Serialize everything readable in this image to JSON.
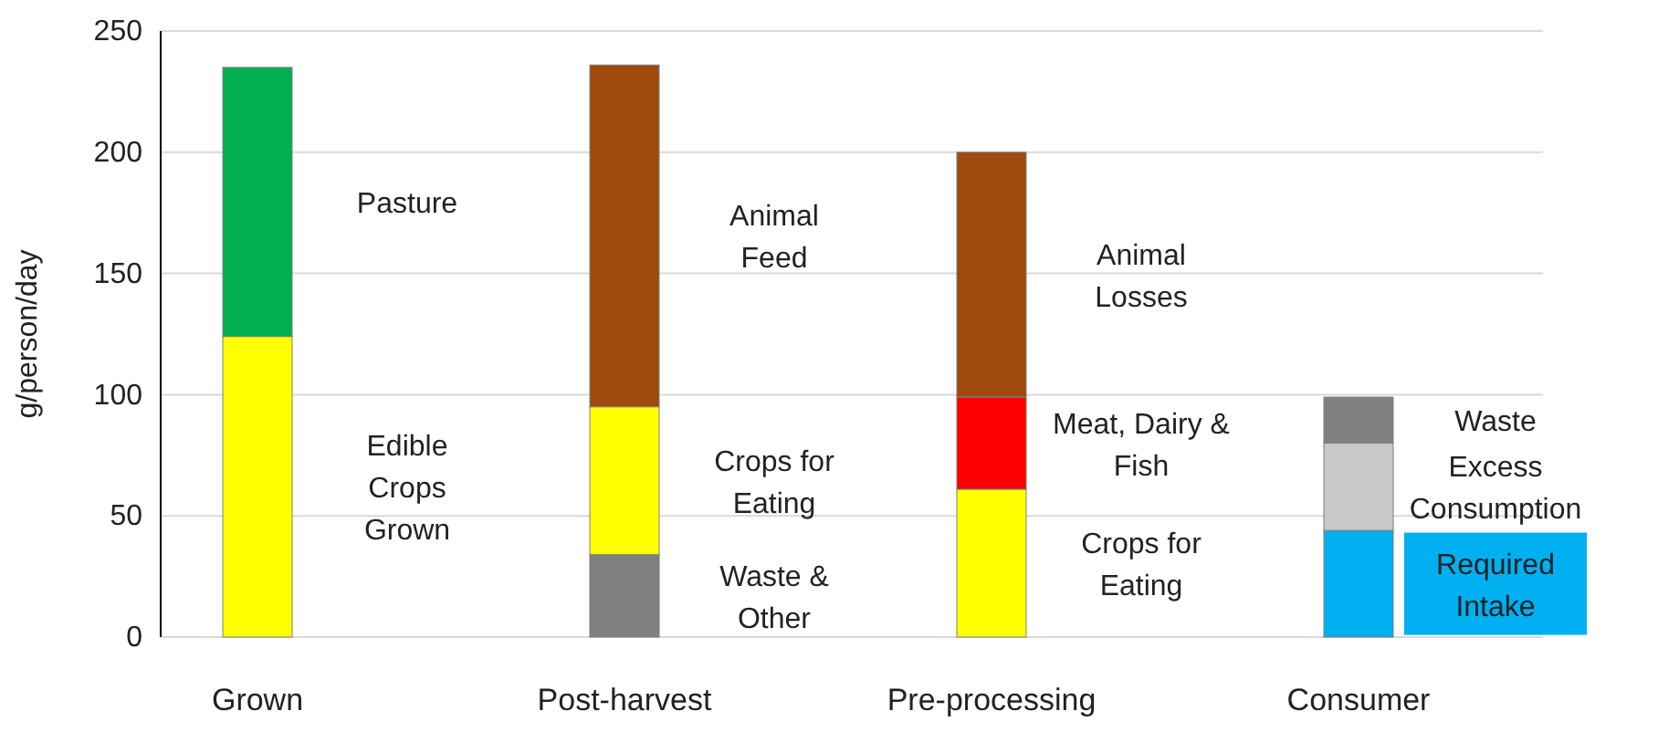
{
  "chart_data": {
    "type": "bar",
    "stacked": true,
    "ylabel": "g/person/day",
    "categories": [
      "Grown",
      "Post-harvest",
      "Pre-processing",
      "Consumer"
    ],
    "ylim": [
      0,
      250
    ],
    "yticks": [
      0,
      50,
      100,
      150,
      200,
      250
    ],
    "grid": "y",
    "series": [
      {
        "name": "Waste &\nOther",
        "color": "#808080",
        "values": [
          null,
          34,
          null,
          null
        ]
      },
      {
        "name": "Required\nIntake",
        "color": "#00b0f0",
        "values": [
          null,
          null,
          null,
          44
        ]
      },
      {
        "name": "Edible\nCrops\nGrown",
        "color": "#ffff00",
        "values": [
          124,
          null,
          null,
          null
        ]
      },
      {
        "name": "Crops for\nEating",
        "color": "#ffff00",
        "values": [
          null,
          61,
          null,
          null
        ]
      },
      {
        "name": "Crops for\nEating",
        "color": "#ffff00",
        "values": [
          null,
          null,
          61,
          null
        ]
      },
      {
        "name": "Meat, Dairy &\nFish",
        "color": "#ff0000",
        "values": [
          null,
          null,
          38,
          null
        ]
      },
      {
        "name": "Excess\nConsumption",
        "color": "#c8c8c8",
        "values": [
          null,
          null,
          null,
          36
        ]
      },
      {
        "name": "Waste",
        "color": "#808080",
        "values": [
          null,
          null,
          null,
          19
        ]
      },
      {
        "name": "Pasture",
        "color": "#00b050",
        "values": [
          111,
          null,
          null,
          null
        ]
      },
      {
        "name": "Animal\nFeed",
        "color": "#9e4a0f",
        "values": [
          null,
          141,
          null,
          null
        ]
      },
      {
        "name": "Animal\nLosses",
        "color": "#9e4a0f",
        "values": [
          null,
          null,
          101,
          null
        ]
      }
    ]
  }
}
